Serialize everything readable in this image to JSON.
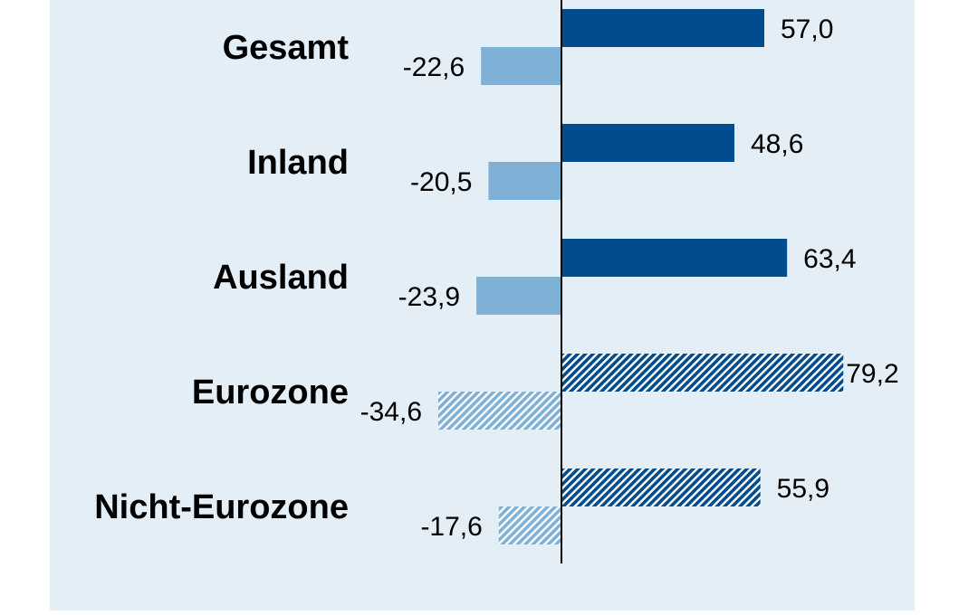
{
  "chart_data": {
    "type": "bar",
    "orientation": "horizontal",
    "categories": [
      "Gesamt",
      "Inland",
      "Ausland",
      "Eurozone",
      "Nicht-Eurozone"
    ],
    "series": [
      {
        "values": [
          57.0,
          48.6,
          63.4,
          79.2,
          55.9
        ]
      },
      {
        "values": [
          -22.6,
          -20.5,
          -23.9,
          -34.6,
          -17.6
        ]
      }
    ],
    "value_labels": [
      [
        "57,0",
        "48,6",
        "63,4",
        "79,2",
        "55,9"
      ],
      [
        "-22,6",
        "-20,5",
        "-23,9",
        "-34,6",
        "-17,6"
      ]
    ],
    "hatched_categories": [
      "Eurozone",
      "Nicht-Eurozone"
    ],
    "xlim": [
      -38,
      100
    ],
    "grid": false,
    "legend": "none",
    "colors": {
      "positive": "#004c8c",
      "negative": "#7fb0d6",
      "background": "#e4eef6",
      "axis": "#000000"
    }
  }
}
